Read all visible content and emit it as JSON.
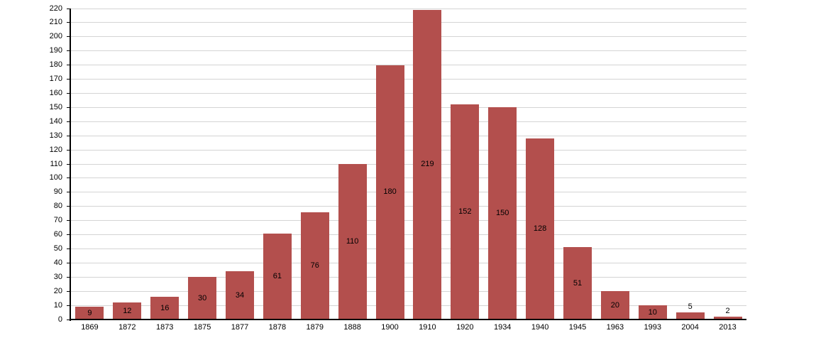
{
  "chart_data": {
    "type": "bar",
    "title": "",
    "xlabel": "",
    "ylabel": "",
    "categories": [
      "1869",
      "1872",
      "1873",
      "1875",
      "1877",
      "1878",
      "1879",
      "1888",
      "1900",
      "1910",
      "1920",
      "1934",
      "1940",
      "1945",
      "1963",
      "1993",
      "2004",
      "2013"
    ],
    "values": [
      9,
      12,
      16,
      30,
      34,
      61,
      76,
      110,
      180,
      219,
      152,
      150,
      128,
      51,
      20,
      10,
      5,
      2
    ],
    "ylim": [
      0,
      220
    ],
    "ytick_step": 10,
    "y_ticks": [
      0,
      10,
      20,
      30,
      40,
      50,
      60,
      70,
      80,
      90,
      100,
      110,
      120,
      130,
      140,
      150,
      160,
      170,
      180,
      190,
      200,
      210,
      220
    ],
    "grid": true,
    "legend": false,
    "colors": {
      "bar": "#b34f4d",
      "gridline": "#d4d4d4",
      "axis": "#000000",
      "text": "#000000",
      "background": "#ffffff"
    }
  }
}
